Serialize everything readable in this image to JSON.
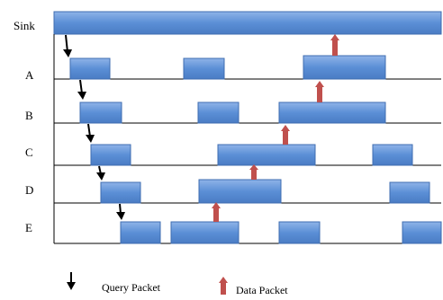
{
  "rows": [
    {
      "id": "sink",
      "label": "Sink"
    },
    {
      "id": "a",
      "label": "A"
    },
    {
      "id": "b",
      "label": "B"
    },
    {
      "id": "c",
      "label": "C"
    },
    {
      "id": "d",
      "label": "D"
    },
    {
      "id": "e",
      "label": "E"
    }
  ],
  "legend": {
    "query_label": "Query Packet",
    "data_label": "Data Packet"
  },
  "colors": {
    "block_fill": "#5b8fd6",
    "block_stroke": "#3f6db0",
    "query_arrow": "#000000",
    "data_arrow": "#c0504d",
    "line": "#000000"
  },
  "icons": {
    "query": "down-arrow-icon",
    "data": "up-arrow-icon"
  }
}
